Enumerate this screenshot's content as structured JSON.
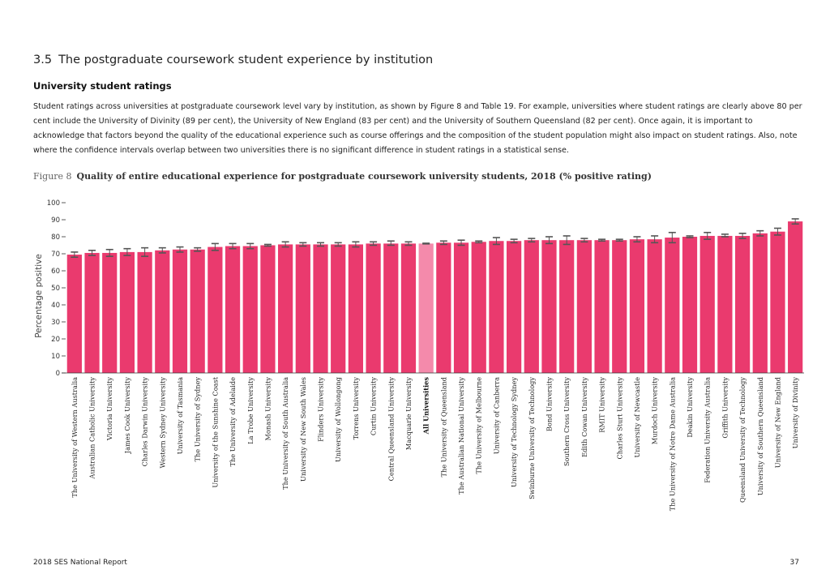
{
  "section": {
    "number": "3.5",
    "title": "The postgraduate coursework student experience by institution"
  },
  "subheading": "University student ratings",
  "paragraph": "Student ratings across universities at postgraduate coursework level vary by institution, as shown by Figure 8 and Table 19. For example, universities where student ratings are clearly above 80 per cent include the University of Divinity (89 per cent), the University of  New England (83 per cent) and the University of Southern Queensland (82 per cent). Once again, it is important to acknowledge that factors beyond the quality of the educational experience such as course offerings and the composition of the student population might also impact on student ratings. Also, note where the confidence intervals overlap between two universities there is no significant difference in student ratings in a statistical sense.",
  "figure": {
    "label": "Figure 8",
    "title": "Quality of entire educational experience for postgraduate coursework university students, 2018 (% positive rating)"
  },
  "footer": {
    "left": "2018 SES  National Report",
    "page": "37"
  },
  "colors": {
    "bar": "#ea3a6e",
    "highlight": "#f48aab",
    "errorbar": "#555555",
    "axis": "#333333"
  },
  "chart_data": {
    "type": "bar",
    "ylabel": "Percentage positive",
    "xlabel": "",
    "ylim": [
      0,
      100
    ],
    "yticks": [
      0,
      10,
      20,
      30,
      40,
      50,
      60,
      70,
      80,
      90,
      100
    ],
    "grid": false,
    "highlight": "All Universities",
    "categories": [
      "The University of Western Australia",
      "Australian Catholic University",
      "Victoria University",
      "James Cook University",
      "Charles Darwin University",
      "Western Sydney University",
      "University of Tasmania",
      "The University of Sydney",
      "University of the Sunshine Coast",
      "The University of Adelaide",
      "La Trobe University",
      "Monash University",
      "The University of South Australia",
      "University of New South Wales",
      "Flinders University",
      "University of Wollongong",
      "Torrens University",
      "Curtin University",
      "Central Queensland University",
      "Macquarie University",
      "All Universities",
      "The University of Queensland",
      "The Australian National University",
      "The University of Melbourne",
      "University of Canberra",
      "University of Technology Sydney",
      "Swinburne University of Technology",
      "Bond University",
      "Southern Cross University",
      "Edith Cowan University",
      "RMIT University",
      "Charles Sturt University",
      "University of Newcastle",
      "Murdoch University",
      "The University of Notre Dame Australia",
      "Deakin University",
      "Federation University Australia",
      "Griffith University",
      "Queensland University of Technology",
      "University of Southern Queensland",
      "University of New England",
      "University of Divinity"
    ],
    "values": [
      69.5,
      70.5,
      70.5,
      71,
      71,
      72,
      72.5,
      72.5,
      74,
      74.5,
      74.5,
      75,
      75.5,
      75.5,
      75.5,
      75.5,
      75.5,
      76,
      76,
      76,
      76,
      76.5,
      76.5,
      77,
      77.5,
      77.5,
      78,
      78,
      78,
      78,
      78,
      78,
      78.5,
      78.5,
      79.5,
      80,
      80.5,
      80.5,
      80.5,
      82,
      83,
      89
    ],
    "ci_lower": [
      68,
      69,
      68.5,
      69,
      68.5,
      70.5,
      71,
      71.5,
      72,
      73,
      73,
      74.5,
      74,
      74.5,
      74.5,
      74.5,
      74,
      75,
      75,
      75,
      75.8,
      75.5,
      75,
      76.5,
      75.5,
      76.5,
      77,
      76,
      75.5,
      77,
      77.5,
      77.5,
      77,
      76.5,
      76.5,
      79.5,
      78.5,
      80,
      79,
      80.5,
      81,
      87.5
    ],
    "ci_upper": [
      71,
      72,
      72.5,
      73,
      73.5,
      73.5,
      74,
      73.5,
      76,
      76,
      76,
      75.5,
      77,
      76.5,
      76.5,
      76.5,
      77,
      77,
      77.5,
      77,
      76.2,
      77.5,
      78,
      77.5,
      79.5,
      78.5,
      79,
      80,
      80.5,
      79,
      78.5,
      78.5,
      80,
      80.5,
      82.5,
      80.5,
      82.5,
      81.5,
      82,
      83.5,
      85,
      90.5
    ]
  }
}
